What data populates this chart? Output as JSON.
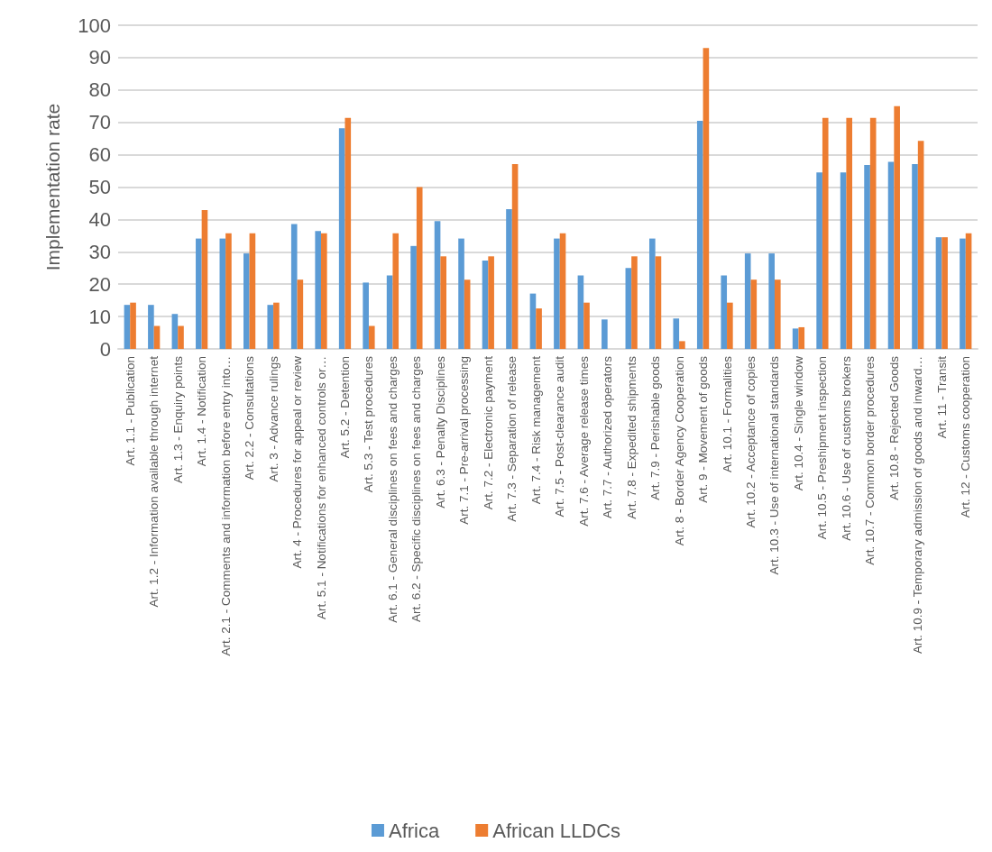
{
  "chart_data": {
    "type": "bar",
    "ylabel": "Implementation rate",
    "categories": [
      "Art. 1.1 - Publication",
      "Art. 1.2 - Information available through internet",
      "Art. 1.3 - Enquiry points",
      "Art. 1.4 - Notification",
      "Art. 2.1 - Comments and information before entry into…",
      "Art. 2.2 - Consultations",
      "Art. 3 - Advance rulings",
      "Art. 4 - Procedures for appeal or review",
      "Art. 5.1 - Notifications for enhanced controls or…",
      "Art. 5.2 - Detention",
      "Art. 5.3 - Test procedures",
      "Art. 6.1 - General disciplines on fees and charges",
      "Art. 6.2 - Specific disciplines on fees and charges",
      "Art. 6.3 - Penalty Disciplines",
      "Art. 7.1 - Pre-arrival processing",
      "Art. 7.2 - Electronic payment",
      "Art. 7.3 - Separation of release",
      "Art. 7.4 - Risk management",
      "Art. 7.5 - Post-clearance audit",
      "Art. 7.6 - Average release times",
      "Art. 7.7 - Authorized operators",
      "Art. 7.8 - Expedited shipments",
      "Art. 7.9 - Perishable goods",
      "Art. 8 - Border Agency Cooperation",
      "Art. 9 - Movement of goods",
      "Art. 10.1 - Formalities",
      "Art. 10.2 - Acceptance of copies",
      "Art. 10.3 - Use of international standards",
      "Art. 10.4 - Single window",
      "Art. 10.5 - Preshipment inspection",
      "Art. 10.6 - Use of customs brokers",
      "Art. 10.7 - Common border procedures",
      "Art. 10.8 - Rejected Goods",
      "Art. 10.9 - Temporary admission of goods and inward…",
      "Art. 11 - Transit",
      "Art. 12 - Customs cooperation"
    ],
    "series": [
      {
        "name": "Africa",
        "color": "#5b9bd5",
        "values": [
          13.6,
          13.6,
          10.8,
          34.1,
          34.1,
          29.5,
          13.6,
          38.6,
          36.4,
          68.2,
          20.5,
          22.7,
          31.8,
          39.5,
          34.1,
          27.3,
          43.2,
          17.1,
          34.1,
          22.7,
          9.1,
          25.0,
          34.1,
          9.4,
          70.5,
          22.7,
          29.5,
          29.5,
          6.3,
          54.5,
          54.5,
          56.8,
          57.8,
          57.1,
          34.5,
          34.1
        ]
      },
      {
        "name": "African LLDCs",
        "color": "#ed7d31",
        "values": [
          14.3,
          7.1,
          7.1,
          42.9,
          35.7,
          35.7,
          14.3,
          21.4,
          35.7,
          71.4,
          7.1,
          35.7,
          50.0,
          28.6,
          21.4,
          28.6,
          57.1,
          12.5,
          35.7,
          14.3,
          0,
          28.6,
          28.6,
          2.4,
          93.0,
          14.3,
          21.4,
          21.4,
          6.7,
          71.4,
          71.4,
          71.4,
          75.0,
          64.3,
          34.5,
          35.7
        ]
      }
    ],
    "ylim": [
      0,
      100
    ],
    "yticks": [
      0,
      10,
      20,
      30,
      40,
      50,
      60,
      70,
      80,
      90,
      100
    ],
    "grid": "y",
    "legend": "bottom"
  }
}
